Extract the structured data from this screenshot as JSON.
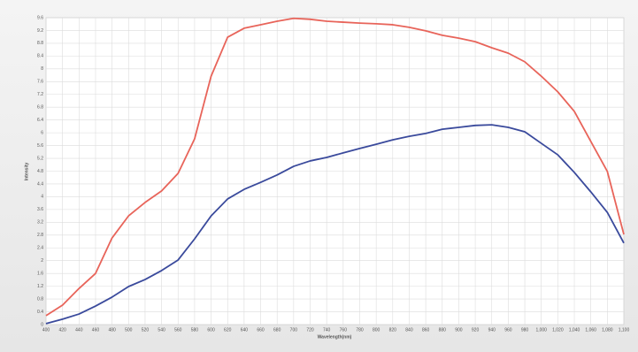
{
  "chart_data": {
    "type": "line",
    "x_label": "Wavelength(nm)",
    "y_label": "Intensity",
    "x": [
      400,
      420,
      440,
      460,
      480,
      500,
      520,
      540,
      560,
      580,
      600,
      620,
      640,
      660,
      680,
      700,
      720,
      740,
      760,
      780,
      800,
      820,
      840,
      860,
      880,
      900,
      920,
      940,
      960,
      980,
      1000,
      1020,
      1040,
      1060,
      1080,
      1100
    ],
    "series": [
      {
        "color": "#e8645a",
        "values": [
          0.28,
          0.61,
          1.13,
          1.6,
          2.71,
          3.4,
          3.82,
          4.18,
          4.73,
          5.81,
          7.77,
          8.99,
          9.27,
          9.38,
          9.49,
          9.58,
          9.55,
          9.49,
          9.46,
          9.43,
          9.41,
          9.38,
          9.3,
          9.19,
          9.05,
          8.96,
          8.85,
          8.66,
          8.49,
          8.22,
          7.77,
          7.28,
          6.67,
          5.73,
          4.79,
          2.82
        ]
      },
      {
        "color": "#3a4a9c",
        "values": [
          0.03,
          0.17,
          0.33,
          0.58,
          0.86,
          1.19,
          1.41,
          1.69,
          2.02,
          2.68,
          3.4,
          3.93,
          4.23,
          4.45,
          4.68,
          4.95,
          5.12,
          5.23,
          5.37,
          5.51,
          5.64,
          5.78,
          5.89,
          5.98,
          6.11,
          6.17,
          6.23,
          6.25,
          6.17,
          6.03,
          5.67,
          5.31,
          4.76,
          4.15,
          3.51,
          2.55
        ]
      }
    ],
    "xlim": [
      400,
      1100
    ],
    "xticks": [
      400,
      420,
      440,
      460,
      480,
      500,
      520,
      540,
      560,
      580,
      600,
      620,
      640,
      660,
      680,
      700,
      720,
      740,
      760,
      780,
      800,
      820,
      840,
      860,
      880,
      900,
      920,
      940,
      960,
      980,
      {
        "value": 1000,
        "label": "1,000"
      },
      {
        "value": 1020,
        "label": "1,020"
      },
      {
        "value": 1040,
        "label": "1,040"
      },
      {
        "value": 1060,
        "label": "1,060"
      },
      {
        "value": 1080,
        "label": "1,080"
      },
      {
        "value": 1100,
        "label": "1,100"
      }
    ],
    "ylim": [
      0,
      9.6
    ],
    "yticks": [
      0,
      0.4,
      0.8,
      1.2,
      1.6,
      2,
      2.4,
      2.8,
      3.2,
      3.6,
      4,
      4.4,
      4.8,
      5.2,
      5.6,
      6,
      6.4,
      6.8,
      7.2,
      7.6,
      8,
      8.4,
      8.8,
      9.2,
      9.6
    ],
    "grid": true
  }
}
